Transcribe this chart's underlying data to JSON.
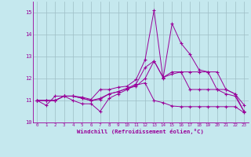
{
  "xlabel": "Windchill (Refroidissement éolien,°C)",
  "background_color": "#c5e8ee",
  "grid_color": "#9ebec5",
  "line_color": "#990099",
  "xlim": [
    -0.5,
    23.5
  ],
  "ylim": [
    10.0,
    15.5
  ],
  "yticks": [
    10,
    11,
    12,
    13,
    14,
    15
  ],
  "xticks": [
    0,
    1,
    2,
    3,
    4,
    5,
    6,
    7,
    8,
    9,
    10,
    11,
    12,
    13,
    14,
    15,
    16,
    17,
    18,
    19,
    20,
    21,
    22,
    23
  ],
  "series": [
    [
      11.0,
      10.78,
      11.2,
      11.2,
      11.0,
      10.85,
      10.85,
      10.5,
      11.1,
      11.3,
      11.5,
      11.7,
      11.8,
      11.0,
      10.9,
      10.75,
      10.72,
      10.72,
      10.72,
      10.72,
      10.72,
      10.72,
      10.72,
      10.45
    ],
    [
      11.0,
      11.0,
      11.0,
      11.2,
      11.2,
      11.1,
      11.0,
      11.1,
      11.3,
      11.4,
      11.55,
      11.75,
      12.5,
      12.8,
      12.05,
      12.2,
      12.3,
      12.3,
      12.3,
      12.3,
      12.3,
      11.5,
      11.3,
      10.8
    ],
    [
      11.0,
      11.0,
      11.0,
      11.2,
      11.2,
      11.15,
      11.05,
      11.5,
      11.5,
      11.6,
      11.65,
      11.95,
      12.85,
      15.1,
      12.0,
      14.5,
      13.6,
      13.1,
      12.4,
      12.3,
      11.5,
      11.5,
      11.3,
      10.5
    ],
    [
      11.0,
      11.0,
      11.0,
      11.2,
      11.2,
      11.1,
      11.0,
      11.05,
      11.3,
      11.4,
      11.55,
      11.65,
      12.0,
      12.8,
      12.05,
      12.3,
      12.3,
      11.5,
      11.5,
      11.5,
      11.5,
      11.3,
      11.2,
      10.5
    ]
  ]
}
